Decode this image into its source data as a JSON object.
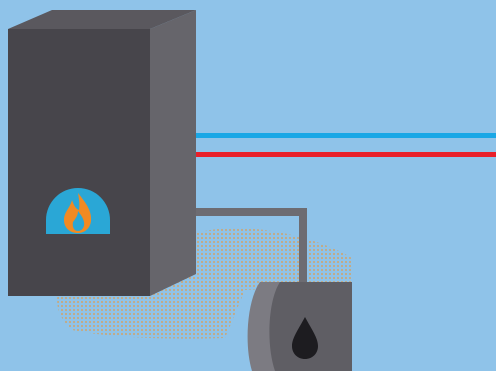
{
  "scene": {
    "subject": "oil-fired-boiler-illustration",
    "colors": {
      "background": "#8fc3e9",
      "boiler_front": "#47454b",
      "boiler_side": "#66656b",
      "boiler_top": "#5a585e",
      "cold_pipe": "#19a7e6",
      "hot_pipe": "#e8202a",
      "feed_pipe": "#6d6c72",
      "tank_body": "#5f5e64",
      "tank_end": "#7c7b82",
      "burner_window": "#2aa7d6",
      "flame": "#f28a22",
      "oil_drop": "#1d1c20",
      "shadow_dots": "#c9a77a"
    },
    "icons": {
      "flame": "flame-icon",
      "oil": "oil-drop-icon"
    }
  }
}
